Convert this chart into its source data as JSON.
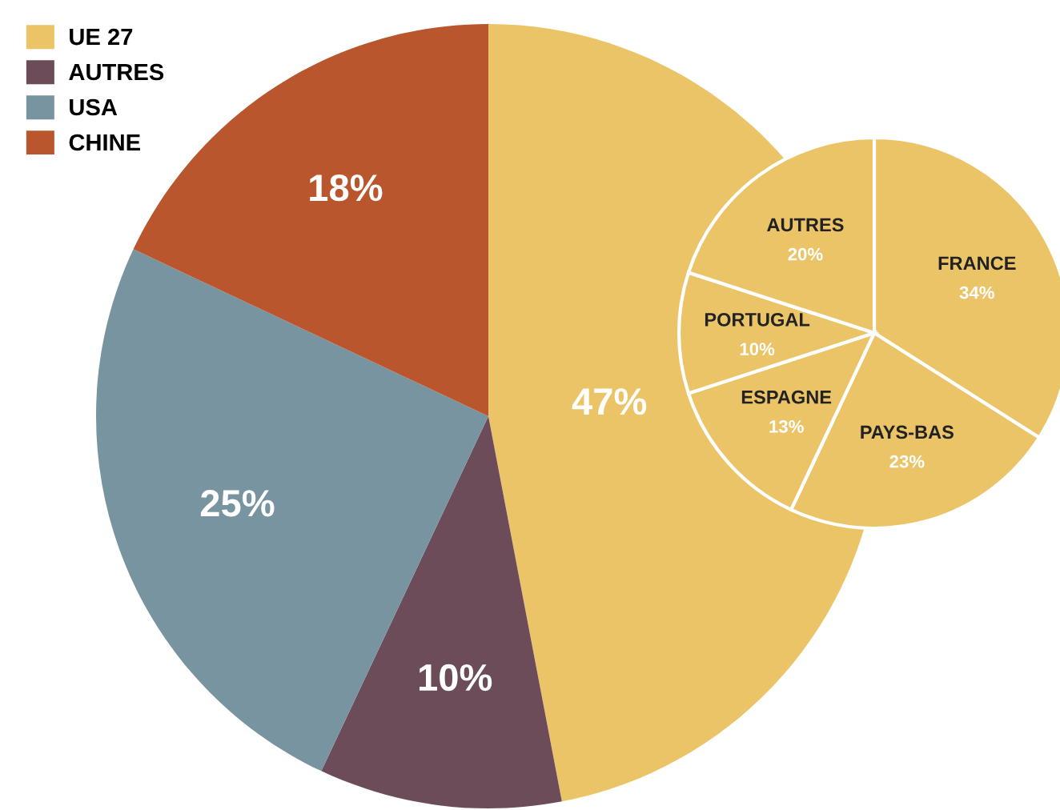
{
  "chart_data": [
    {
      "type": "pie",
      "categories": [
        "FRANCE",
        "PAYS-BAS",
        "ESPAGNE",
        "PORTUGAL",
        "AUTRES"
      ],
      "values": [
        34,
        23,
        13,
        10,
        20
      ],
      "colors": [
        "#ecc468",
        "#ecc468",
        "#ecc468",
        "#ecc468",
        "#ecc468"
      ],
      "value_labels": [
        "34%",
        "23%",
        "13%",
        "10%",
        "20%"
      ]
    },
    {
      "type": "pie",
      "categories": [
        "UE 27",
        "AUTRES",
        "USA",
        "CHINE"
      ],
      "values": [
        47,
        10,
        25,
        18
      ],
      "colors": [
        "#ecc468",
        "#6d4c5a",
        "#7894a1",
        "#b9562d"
      ],
      "value_labels": [
        "47%",
        "10%",
        "25%",
        "18%"
      ],
      "legend": "top left"
    }
  ]
}
